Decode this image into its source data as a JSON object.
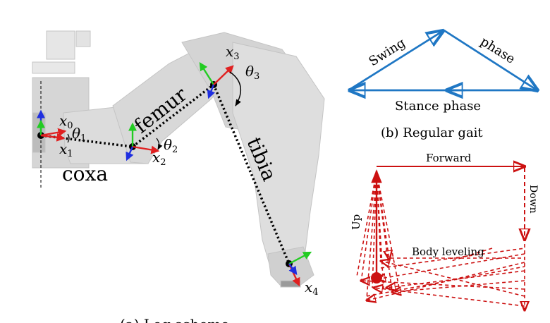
{
  "leg_scheme": {
    "caption": "(a) Leg scheme",
    "segments": {
      "coxa": "coxa",
      "femur": "femur",
      "tibia": "tibia"
    },
    "frames": {
      "x0": "x",
      "x1": "x",
      "x2": "x",
      "x3": "x",
      "x4": "x"
    },
    "frame_subscripts": {
      "x0": "0",
      "x1": "1",
      "x2": "2",
      "x3": "3",
      "x4": "4"
    },
    "angles": {
      "theta1": "θ",
      "theta2": "θ",
      "theta3": "θ"
    },
    "angle_subscripts": {
      "theta1": "1",
      "theta2": "2",
      "theta3": "3"
    },
    "colors": {
      "x_axis": "#e02020",
      "y_axis": "#22cc22",
      "z_axis": "#1f2fe0",
      "link": "#000000",
      "robot": "#d9d9d9"
    }
  },
  "regular_gait": {
    "caption": "(b) Regular gait",
    "swing_label": "Swing",
    "phase_label": "phase",
    "stance_label": "Stance phase",
    "color": "#1f77c4"
  },
  "body_leveling": {
    "forward_label": "Forward",
    "down_label": "Down",
    "up_label": "Up",
    "leveling_label": "Body leveling",
    "color": "#cc1111"
  }
}
